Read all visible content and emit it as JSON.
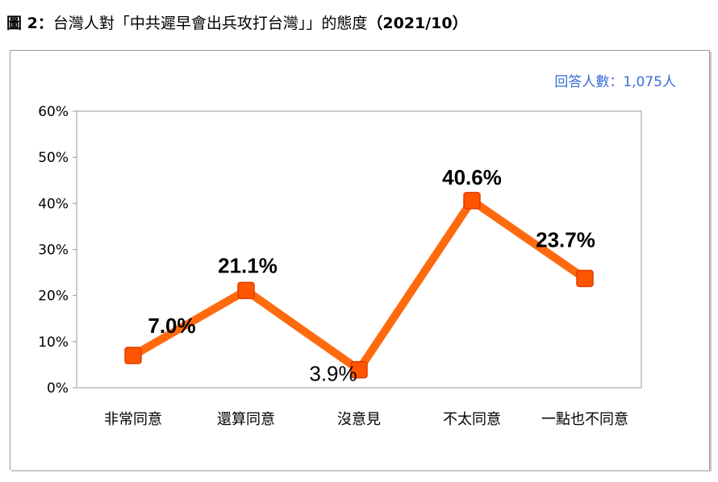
{
  "title": {
    "prefix": "圖 2：",
    "main": "台灣人對「中共遲早會出兵攻打台灣」」的態度",
    "date": "（2021/10）"
  },
  "respondents": "回答人數：1,075人",
  "colors": {
    "line": "#ff6a0e",
    "marker": "#ff5500",
    "marker_edge": "#e03c00",
    "respondents_text": "#3a6fd8",
    "axis": "#999999"
  },
  "chart_data": {
    "type": "line",
    "categories": [
      "非常同意",
      "還算同意",
      "沒意見",
      "不太同意",
      "一點也不同意"
    ],
    "values": [
      7.0,
      21.1,
      3.9,
      40.6,
      23.7
    ],
    "data_labels": [
      "7.0%",
      "21.1%",
      "3.9%",
      "40.6%",
      "23.7%"
    ],
    "y_ticks": [
      "0%",
      "10%",
      "20%",
      "30%",
      "40%",
      "50%",
      "60%"
    ],
    "ylim": [
      0,
      60
    ],
    "grid": false,
    "title": "",
    "xlabel": "",
    "ylabel": ""
  }
}
